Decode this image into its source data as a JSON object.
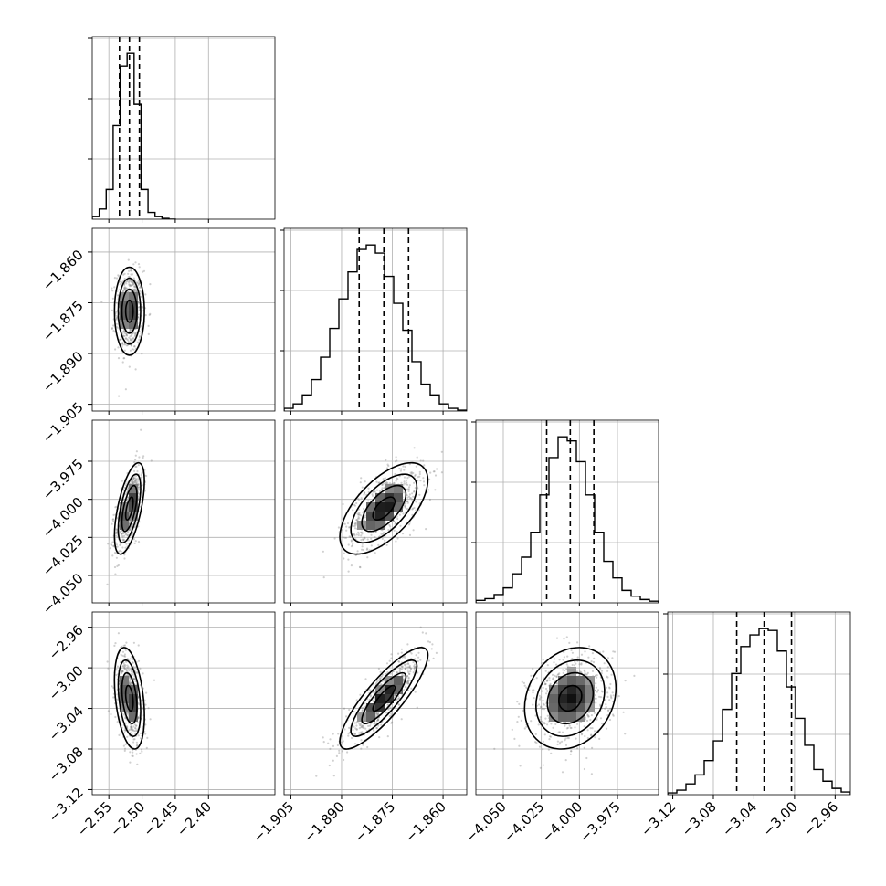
{
  "chart_data": {
    "type": "corner",
    "parameters": 4,
    "grid": true,
    "colors": {
      "line": "#000000",
      "scatter": "#777777",
      "grid": "#b0b0b0",
      "background": "#ffffff"
    },
    "axes": [
      {
        "range": [
          -2.575,
          -2.3
        ],
        "ticks": [
          -2.55,
          -2.5,
          -2.45,
          -2.4
        ],
        "tick_labels": [
          "−2.55",
          "−2.50",
          "−2.45",
          "−2.40"
        ],
        "quantiles": [
          -2.534,
          -2.519,
          -2.504
        ]
      },
      {
        "range": [
          -1.907,
          -1.853
        ],
        "ticks": [
          -1.905,
          -1.89,
          -1.875,
          -1.86
        ],
        "tick_labels": [
          "−1.905",
          "−1.890",
          "−1.875",
          "−1.860"
        ],
        "quantiles": [
          -1.8848,
          -1.8775,
          -1.8702
        ]
      },
      {
        "range": [
          -4.068,
          -3.948
        ],
        "ticks": [
          -4.05,
          -4.025,
          -4.0,
          -3.975
        ],
        "tick_labels": [
          "−4.050",
          "−4.025",
          "−4.000",
          "−3.975"
        ],
        "quantiles": [
          -4.0215,
          -4.006,
          -3.9905
        ]
      },
      {
        "range": [
          -3.125,
          -2.945
        ],
        "ticks": [
          -3.12,
          -3.08,
          -3.04,
          -3.0,
          -2.96
        ],
        "tick_labels": [
          "−3.12",
          "−3.08",
          "−3.04",
          "−3.00",
          "−2.96"
        ],
        "quantiles": [
          -3.057,
          -3.03,
          -3.003
        ]
      }
    ],
    "histograms": [
      {
        "bin_edges": [
          -2.575,
          -2.5645,
          -2.554,
          -2.5435,
          -2.533,
          -2.5225,
          -2.512,
          -2.5015,
          -2.491,
          -2.4805,
          -2.47,
          -2.4595,
          -2.449
        ],
        "counts": [
          3,
          12,
          35,
          110,
          180,
          195,
          135,
          35,
          8,
          3,
          1,
          0
        ]
      },
      {
        "bin_edges": [
          -1.907,
          -1.9043,
          -1.9016,
          -1.8989,
          -1.8962,
          -1.8935,
          -1.8908,
          -1.8881,
          -1.8854,
          -1.8827,
          -1.88,
          -1.8773,
          -1.8746,
          -1.8719,
          -1.8692,
          -1.8665,
          -1.8638,
          -1.8611,
          -1.8584,
          -1.8557,
          -1.853
        ],
        "counts": [
          3,
          8,
          18,
          35,
          60,
          92,
          125,
          155,
          180,
          185,
          176,
          150,
          120,
          90,
          55,
          30,
          18,
          8,
          3,
          1
        ]
      },
      {
        "bin_edges": [
          -4.068,
          -4.062,
          -4.056,
          -4.05,
          -4.044,
          -4.038,
          -4.032,
          -4.026,
          -4.02,
          -4.014,
          -4.008,
          -4.002,
          -3.996,
          -3.99,
          -3.984,
          -3.978,
          -3.972,
          -3.966,
          -3.96,
          -3.954,
          -3.948
        ],
        "counts": [
          3,
          5,
          10,
          18,
          35,
          55,
          85,
          130,
          175,
          200,
          195,
          170,
          130,
          85,
          50,
          30,
          15,
          8,
          4,
          2
        ]
      },
      {
        "bin_edges": [
          -3.125,
          -3.116,
          -3.107,
          -3.098,
          -3.089,
          -3.08,
          -3.071,
          -3.062,
          -3.053,
          -3.044,
          -3.035,
          -3.026,
          -3.017,
          -3.008,
          -2.999,
          -2.99,
          -2.981,
          -2.972,
          -2.963,
          -2.954,
          -2.945
        ],
        "counts": [
          2,
          5,
          12,
          22,
          38,
          60,
          95,
          135,
          165,
          178,
          185,
          183,
          160,
          120,
          85,
          55,
          28,
          15,
          7,
          3
        ]
      }
    ],
    "pairs": [
      {
        "x": 0,
        "y": 1,
        "center": [
          -2.519,
          -1.8775
        ],
        "sd": [
          0.009,
          0.0052
        ],
        "corr": 0.0,
        "n": 650
      },
      {
        "x": 0,
        "y": 2,
        "center": [
          -2.519,
          -4.006
        ],
        "sd": [
          0.009,
          0.012
        ],
        "corr": 0.6,
        "n": 650
      },
      {
        "x": 1,
        "y": 2,
        "center": [
          -1.8775,
          -4.006
        ],
        "sd": [
          0.0052,
          0.012
        ],
        "corr": 0.62,
        "n": 650
      },
      {
        "x": 0,
        "y": 3,
        "center": [
          -2.519,
          -3.03
        ],
        "sd": [
          0.009,
          0.02
        ],
        "corr": -0.35,
        "n": 650
      },
      {
        "x": 1,
        "y": 3,
        "center": [
          -1.8775,
          -3.03
        ],
        "sd": [
          0.0052,
          0.02
        ],
        "corr": 0.85,
        "n": 650
      },
      {
        "x": 2,
        "y": 3,
        "center": [
          -4.006,
          -3.03
        ],
        "sd": [
          0.012,
          0.02
        ],
        "corr": 0.2,
        "n": 650
      }
    ],
    "contour_levels_sigma": [
      0.5,
      1.0,
      1.5,
      2.0
    ]
  }
}
